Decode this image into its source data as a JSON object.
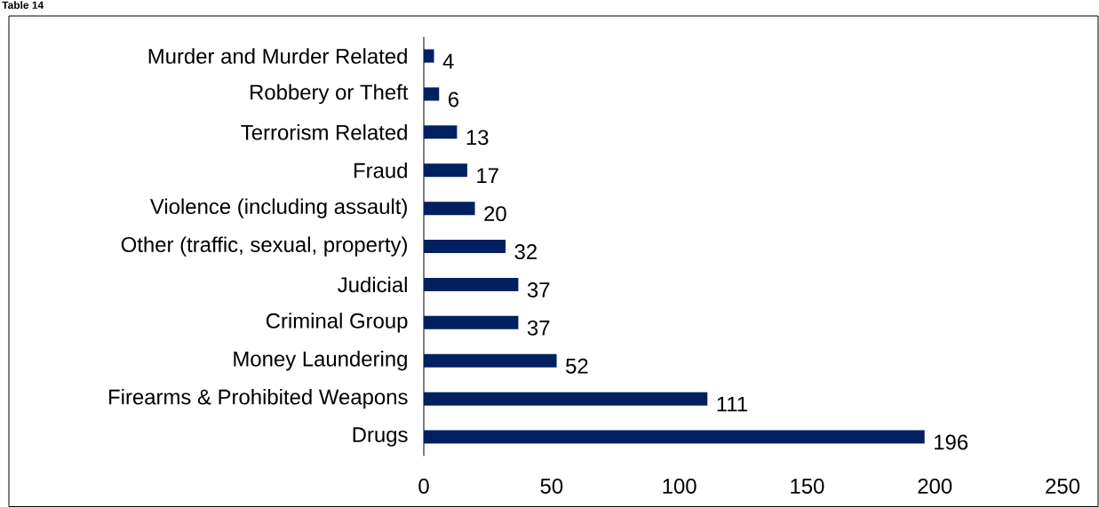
{
  "chart_data": {
    "type": "bar",
    "orientation": "horizontal",
    "title": "Table 14",
    "categories": [
      "Murder and Murder Related",
      "Robbery or Theft",
      "Terrorism Related",
      "Fraud",
      "Violence (including assault)",
      "Other (traffic, sexual, property)",
      "Judicial",
      "Criminal Group",
      "Money Laundering",
      "Firearms & Prohibited Weapons",
      "Drugs"
    ],
    "values": [
      4,
      6,
      13,
      17,
      20,
      32,
      37,
      37,
      52,
      111,
      196
    ],
    "color": "#002060",
    "data_labels": true,
    "xlim": [
      0,
      250
    ],
    "xticks": [
      0,
      50,
      100,
      150,
      200,
      250
    ]
  }
}
